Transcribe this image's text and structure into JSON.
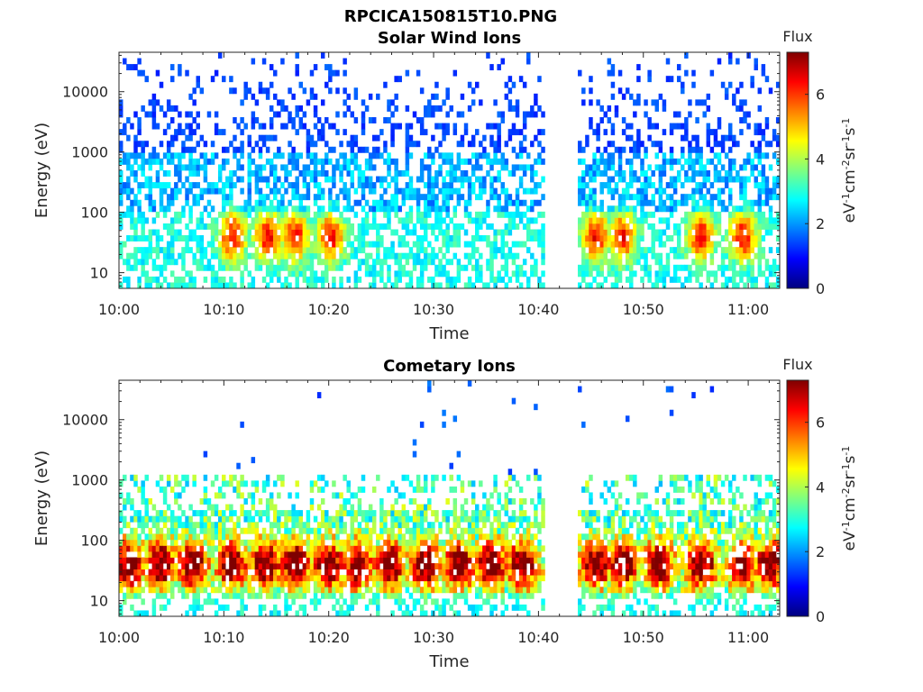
{
  "figure_title": "RPCICA150815T10.PNG",
  "colors": {
    "colormap": [
      "#00007f",
      "#0000ff",
      "#007fff",
      "#00ffff",
      "#7fff7f",
      "#ffff00",
      "#ff7f00",
      "#ff0000",
      "#7f0000"
    ],
    "axis": "#262626"
  },
  "chart_data": [
    {
      "type": "heatmap",
      "title": "Solar Wind Ions",
      "xlabel": "Time",
      "ylabel": "Energy (eV)",
      "x_ticks": [
        "10:00",
        "10:10",
        "10:20",
        "10:30",
        "10:40",
        "10:50",
        "11:00"
      ],
      "x_range_minutes": [
        0,
        63
      ],
      "y_scale": "log",
      "y_ticks": [
        "10",
        "100",
        "1000",
        "10000"
      ],
      "y_range_eV": [
        5.5,
        45000
      ],
      "data_gap_minutes": [
        40.5,
        43.8
      ],
      "colorbar": {
        "label": "Flux",
        "units": "eV-1cm-2sr-1s-1",
        "range": [
          0,
          7.3
        ],
        "ticks": [
          "0",
          "2",
          "4",
          "6"
        ]
      },
      "peak_flux_bursts_minutes": [
        10.8,
        14.2,
        16.8,
        20.2,
        45.5,
        48.0,
        55.5,
        59.5
      ],
      "peak_flux_energy_eV": 40,
      "background_flux_range": [
        1,
        3
      ]
    },
    {
      "type": "heatmap",
      "title": "Cometary Ions",
      "xlabel": "Time",
      "ylabel": "Energy (eV)",
      "x_ticks": [
        "10:00",
        "10:10",
        "10:20",
        "10:30",
        "10:40",
        "10:50",
        "11:00"
      ],
      "x_range_minutes": [
        0,
        63
      ],
      "y_scale": "log",
      "y_ticks": [
        "10",
        "100",
        "1000",
        "10000"
      ],
      "y_range_eV": [
        5.5,
        45000
      ],
      "data_gap_minutes": [
        40.5,
        43.8
      ],
      "colorbar": {
        "label": "Flux",
        "units": "eV-1cm-2sr-1s-1",
        "range": [
          0,
          7.3
        ],
        "ticks": [
          "0",
          "2",
          "4",
          "6"
        ]
      },
      "peak_flux_bursts_minutes": [
        1.0,
        4.0,
        7.0,
        10.8,
        14.0,
        16.8,
        20.0,
        22.8,
        25.8,
        29.2,
        32.5,
        35.5,
        38.5,
        45.5,
        48.0,
        51.5,
        55.5,
        59.5,
        62.0
      ],
      "peak_flux_energy_eV": 40,
      "background_flux_range": [
        2,
        4
      ]
    }
  ]
}
